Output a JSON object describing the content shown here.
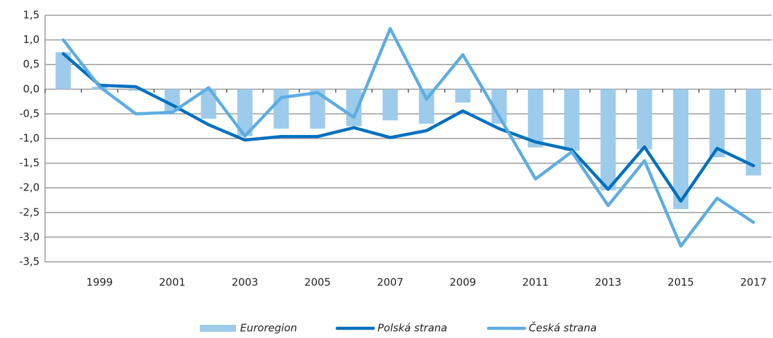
{
  "chart_data": {
    "type": "bar-line",
    "categories": [
      null,
      "1999",
      null,
      "2001",
      null,
      "2003",
      null,
      "2005",
      null,
      "2007",
      null,
      "2009",
      null,
      "2011",
      null,
      "2013",
      null,
      "2015",
      null,
      "2017"
    ],
    "series": [
      {
        "name": "Euroregion",
        "type": "bar",
        "color": "#9dcbeb",
        "values": [
          0.75,
          0.05,
          -0.03,
          -0.45,
          -0.6,
          -0.95,
          -0.8,
          -0.8,
          -0.75,
          -0.63,
          -0.7,
          -0.27,
          -0.7,
          -1.18,
          -1.25,
          -2.05,
          -1.22,
          -2.43,
          -1.38,
          -1.75
        ]
      },
      {
        "name": "Polská strana",
        "type": "line",
        "color": "#0070c0",
        "values": [
          0.72,
          0.08,
          0.05,
          -0.32,
          -0.72,
          -1.03,
          -0.96,
          -0.96,
          -0.78,
          -0.98,
          -0.84,
          -0.44,
          -0.8,
          -1.07,
          -1.23,
          -2.03,
          -1.17,
          -2.27,
          -1.2,
          -1.55
        ]
      },
      {
        "name": "Česká strana",
        "type": "line",
        "color": "#5dade2",
        "values": [
          1.0,
          0.05,
          -0.5,
          -0.47,
          0.03,
          -0.95,
          -0.17,
          -0.07,
          -0.57,
          1.23,
          -0.2,
          0.7,
          -0.55,
          -1.82,
          -1.27,
          -2.36,
          -1.45,
          -3.18,
          -2.21,
          -2.7
        ]
      }
    ],
    "ylim": [
      -3.5,
      1.5
    ],
    "yticks": [
      {
        "value": -3.5,
        "label": "-3,5"
      },
      {
        "value": -3,
        "label": "-3,0"
      },
      {
        "value": -2.5,
        "label": "-2,5"
      },
      {
        "value": -2,
        "label": "-2,0"
      },
      {
        "value": -1.5,
        "label": "-1,5"
      },
      {
        "value": -1,
        "label": "-1,0"
      },
      {
        "value": -0.5,
        "label": "-0,5"
      },
      {
        "value": 0,
        "label": "0,0"
      },
      {
        "value": 0.5,
        "label": "0,5"
      },
      {
        "value": 1,
        "label": "1,0"
      },
      {
        "value": 1.5,
        "label": "1,5"
      }
    ],
    "grid": true,
    "legend": "bottom"
  }
}
